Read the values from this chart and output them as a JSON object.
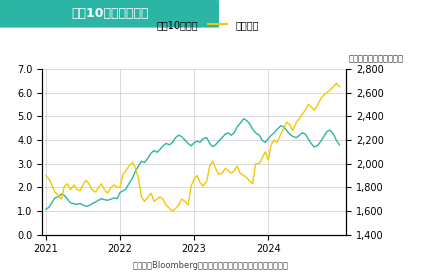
{
  "title": "米国10年債と金価格",
  "title_bg_color": "#2ab5a5",
  "title_text_color": "#ffffff",
  "legend_line1": "米国10年国債",
  "legend_line2": "金（右）",
  "right_axis_label": "（ドル／トロイオンス）",
  "footer": "（出所：Bloombergより住友商事グローバルリサーチ作成）",
  "line1_color": "#2ab5a5",
  "line2_color": "#f5c800",
  "xlim_start": 2020.95,
  "xlim_end": 2025.05,
  "ylim_left": [
    0.0,
    7.0
  ],
  "ylim_right": [
    1400,
    2800
  ],
  "yticks_left": [
    0.0,
    1.0,
    2.0,
    3.0,
    4.0,
    5.0,
    6.0,
    7.0
  ],
  "yticks_right": [
    1400,
    1600,
    1800,
    2000,
    2200,
    2400,
    2600,
    2800
  ],
  "xticks": [
    2021,
    2022,
    2023,
    2024
  ],
  "grid_color": "#cccccc",
  "bg_color": "#ffffff",
  "us10y": {
    "x": [
      2021.0,
      2021.04,
      2021.08,
      2021.12,
      2021.17,
      2021.21,
      2021.25,
      2021.29,
      2021.33,
      2021.38,
      2021.42,
      2021.46,
      2021.5,
      2021.54,
      2021.58,
      2021.62,
      2021.67,
      2021.71,
      2021.75,
      2021.79,
      2021.83,
      2021.88,
      2021.92,
      2021.96,
      2022.0,
      2022.04,
      2022.08,
      2022.12,
      2022.17,
      2022.21,
      2022.25,
      2022.29,
      2022.33,
      2022.38,
      2022.42,
      2022.46,
      2022.5,
      2022.54,
      2022.58,
      2022.62,
      2022.67,
      2022.71,
      2022.75,
      2022.79,
      2022.83,
      2022.88,
      2022.92,
      2022.96,
      2023.0,
      2023.04,
      2023.08,
      2023.12,
      2023.17,
      2023.21,
      2023.25,
      2023.29,
      2023.33,
      2023.38,
      2023.42,
      2023.46,
      2023.5,
      2023.54,
      2023.58,
      2023.62,
      2023.67,
      2023.71,
      2023.75,
      2023.79,
      2023.83,
      2023.88,
      2023.92,
      2023.96,
      2024.0,
      2024.04,
      2024.08,
      2024.12,
      2024.17,
      2024.21,
      2024.25,
      2024.29,
      2024.33,
      2024.38,
      2024.42,
      2024.46,
      2024.5,
      2024.54,
      2024.58,
      2024.62,
      2024.67,
      2024.71,
      2024.75,
      2024.79,
      2024.83,
      2024.88,
      2024.92,
      2024.96
    ],
    "y": [
      1.07,
      1.15,
      1.35,
      1.55,
      1.6,
      1.72,
      1.65,
      1.5,
      1.35,
      1.3,
      1.28,
      1.32,
      1.25,
      1.2,
      1.22,
      1.3,
      1.38,
      1.45,
      1.52,
      1.48,
      1.45,
      1.5,
      1.55,
      1.52,
      1.78,
      1.85,
      1.92,
      2.15,
      2.4,
      2.7,
      2.9,
      3.1,
      3.05,
      3.25,
      3.45,
      3.55,
      3.48,
      3.6,
      3.75,
      3.85,
      3.8,
      3.9,
      4.1,
      4.2,
      4.15,
      3.98,
      3.85,
      3.75,
      3.88,
      3.95,
      3.9,
      4.05,
      4.1,
      3.85,
      3.72,
      3.8,
      3.95,
      4.1,
      4.25,
      4.3,
      4.2,
      4.3,
      4.55,
      4.7,
      4.9,
      4.82,
      4.68,
      4.45,
      4.3,
      4.2,
      3.98,
      3.9,
      4.05,
      4.2,
      4.3,
      4.45,
      4.6,
      4.55,
      4.4,
      4.25,
      4.15,
      4.1,
      4.2,
      4.3,
      4.25,
      4.05,
      3.85,
      3.7,
      3.78,
      3.95,
      4.15,
      4.35,
      4.42,
      4.25,
      3.98,
      3.8
    ]
  },
  "gold": {
    "x": [
      2021.0,
      2021.04,
      2021.08,
      2021.12,
      2021.17,
      2021.21,
      2021.25,
      2021.29,
      2021.33,
      2021.38,
      2021.42,
      2021.46,
      2021.5,
      2021.54,
      2021.58,
      2021.62,
      2021.67,
      2021.71,
      2021.75,
      2021.79,
      2021.83,
      2021.88,
      2021.92,
      2021.96,
      2022.0,
      2022.04,
      2022.08,
      2022.12,
      2022.17,
      2022.21,
      2022.25,
      2022.29,
      2022.33,
      2022.38,
      2022.42,
      2022.46,
      2022.5,
      2022.54,
      2022.58,
      2022.62,
      2022.67,
      2022.71,
      2022.75,
      2022.79,
      2022.83,
      2022.88,
      2022.92,
      2022.96,
      2023.0,
      2023.04,
      2023.08,
      2023.12,
      2023.17,
      2023.21,
      2023.25,
      2023.29,
      2023.33,
      2023.38,
      2023.42,
      2023.46,
      2023.5,
      2023.54,
      2023.58,
      2023.62,
      2023.67,
      2023.71,
      2023.75,
      2023.79,
      2023.83,
      2023.88,
      2023.92,
      2023.96,
      2024.0,
      2024.04,
      2024.08,
      2024.12,
      2024.17,
      2024.21,
      2024.25,
      2024.29,
      2024.33,
      2024.38,
      2024.42,
      2024.46,
      2024.5,
      2024.54,
      2024.58,
      2024.62,
      2024.67,
      2024.71,
      2024.75,
      2024.79,
      2024.83,
      2024.88,
      2024.92,
      2024.96
    ],
    "y": [
      1900,
      1870,
      1820,
      1760,
      1730,
      1700,
      1810,
      1830,
      1780,
      1820,
      1780,
      1770,
      1820,
      1860,
      1830,
      1780,
      1760,
      1800,
      1830,
      1780,
      1750,
      1800,
      1820,
      1800,
      1800,
      1910,
      1940,
      1980,
      2010,
      1960,
      1870,
      1720,
      1680,
      1720,
      1750,
      1680,
      1700,
      1720,
      1700,
      1650,
      1620,
      1600,
      1620,
      1650,
      1700,
      1680,
      1650,
      1810,
      1870,
      1900,
      1840,
      1810,
      1850,
      1980,
      2020,
      1960,
      1910,
      1920,
      1960,
      1940,
      1920,
      1940,
      1980,
      1920,
      1900,
      1880,
      1850,
      1830,
      2000,
      2000,
      2050,
      2100,
      2030,
      2160,
      2200,
      2180,
      2250,
      2300,
      2350,
      2330,
      2280,
      2350,
      2380,
      2420,
      2450,
      2500,
      2480,
      2450,
      2500,
      2550,
      2580,
      2600,
      2620,
      2650,
      2680,
      2650
    ]
  }
}
